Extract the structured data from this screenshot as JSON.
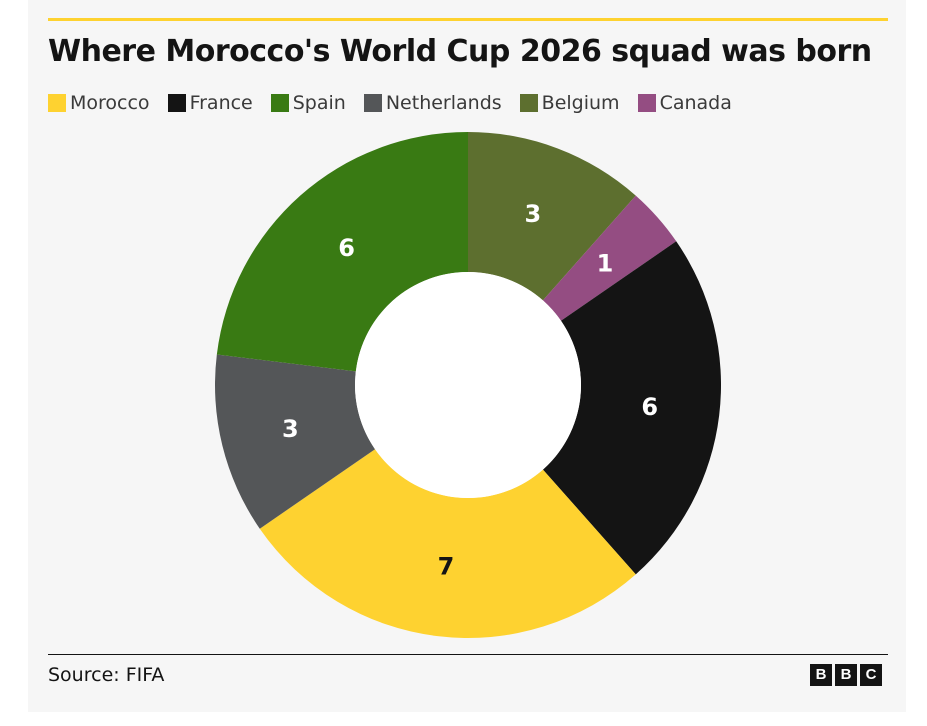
{
  "title": "Where Morocco's World Cup 2026 squad was born",
  "source": "Source: FIFA",
  "logo": {
    "letters": [
      "B",
      "B",
      "C"
    ]
  },
  "colors": {
    "accent_rule": "#fed230",
    "hole": "#ffffff",
    "label_light": "#ffffff",
    "label_dark": "#141414"
  },
  "chart_data": {
    "type": "pie",
    "donut": true,
    "legend_position": "top",
    "categories": [
      "Belgium",
      "Canada",
      "France",
      "Morocco",
      "Netherlands",
      "Spain"
    ],
    "values": [
      3,
      1,
      6,
      7,
      3,
      6
    ],
    "slice_colors": [
      "#5d6f2f",
      "#944d82",
      "#141414",
      "#fed230",
      "#545658",
      "#397a13"
    ],
    "label_colors": [
      "#ffffff",
      "#ffffff",
      "#ffffff",
      "#141414",
      "#ffffff",
      "#ffffff"
    ],
    "legend": [
      {
        "label": "Morocco",
        "color": "#fed230"
      },
      {
        "label": "France",
        "color": "#141414"
      },
      {
        "label": "Spain",
        "color": "#397a13"
      },
      {
        "label": "Netherlands",
        "color": "#545658"
      },
      {
        "label": "Belgium",
        "color": "#5d6f2f"
      },
      {
        "label": "Canada",
        "color": "#944d82"
      }
    ]
  }
}
